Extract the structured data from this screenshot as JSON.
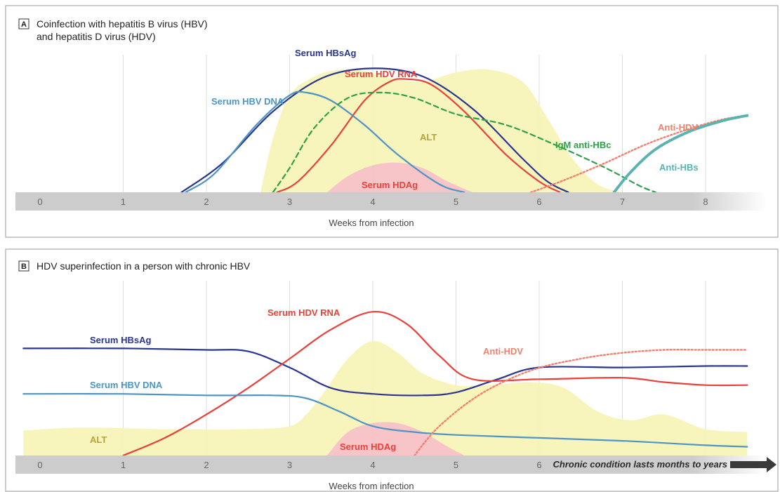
{
  "chart_data": [
    {
      "type": "line",
      "panel_letter": "A",
      "title_lines": [
        "Coinfection with hepatitis B virus (HBV)",
        "and hepatitis D virus (HDV)"
      ],
      "xlabel": "Weeks from infection",
      "x_ticks": [
        "0",
        "1",
        "2",
        "3",
        "4",
        "5",
        "6",
        "7",
        "8"
      ],
      "xlim": [
        0,
        8.5
      ],
      "ylim": [
        0,
        100
      ],
      "grid": true,
      "colors": {
        "hbsag": "#2a3590",
        "hdvrna": "#e8413c",
        "hbvdna": "#4e95c5",
        "igm": "#2fa048",
        "antihdv": "#f08070",
        "antihbs": "#5ab3b0",
        "alt": "#f7f3b8",
        "alt_text": "#b8a33a",
        "hdag": "#f6bfc8",
        "hdag_text": "#e8413c"
      },
      "series": [
        {
          "name": "Serum HBsAg",
          "x": [
            1.7,
            2.2,
            2.8,
            3.4,
            4.0,
            4.6,
            5.2,
            5.8,
            6.1,
            6.35
          ],
          "y": [
            0,
            22,
            60,
            85,
            92,
            86,
            62,
            25,
            8,
            0
          ]
        },
        {
          "name": "Serum HDV RNA",
          "x": [
            2.85,
            3.1,
            3.5,
            3.9,
            4.2,
            4.4,
            4.7,
            5.1,
            5.6,
            6.0,
            6.25
          ],
          "y": [
            0,
            8,
            35,
            68,
            82,
            84,
            80,
            60,
            28,
            8,
            0
          ]
        },
        {
          "name": "Serum HBV DNA",
          "x": [
            1.75,
            2.1,
            2.6,
            3.0,
            3.2,
            3.5,
            3.9,
            4.3,
            4.8,
            5.1
          ],
          "y": [
            0,
            14,
            50,
            72,
            74,
            68,
            50,
            28,
            6,
            0
          ]
        },
        {
          "name": "IgM anti-HBc",
          "x": [
            2.8,
            3.0,
            3.3,
            3.7,
            4.1,
            4.5,
            5.0,
            5.6,
            6.2,
            6.8,
            7.2,
            7.4
          ],
          "y": [
            0,
            18,
            48,
            70,
            74,
            70,
            58,
            50,
            35,
            18,
            5,
            0
          ]
        },
        {
          "name": "Anti-HDV",
          "x": [
            5.9,
            6.3,
            6.8,
            7.3,
            7.8,
            8.2,
            8.5
          ],
          "y": [
            0,
            9,
            22,
            36,
            47,
            54,
            57
          ]
        },
        {
          "name": "Anti-HBs",
          "x": [
            6.9,
            7.1,
            7.4,
            7.8,
            8.2,
            8.5
          ],
          "y": [
            0,
            15,
            32,
            45,
            53,
            57
          ]
        }
      ],
      "areas": [
        {
          "name": "ALT",
          "x": [
            2.65,
            2.8,
            3.0,
            3.3,
            3.6,
            3.9,
            4.2,
            4.6,
            5.0,
            5.4,
            5.8,
            6.1,
            6.4,
            6.7,
            7.0
          ],
          "y": [
            0,
            40,
            72,
            86,
            91,
            90,
            85,
            82,
            89,
            91,
            82,
            55,
            25,
            6,
            0
          ]
        },
        {
          "name": "Serum HDAg",
          "x": [
            3.45,
            3.7,
            4.0,
            4.3,
            4.6,
            4.9,
            5.2
          ],
          "y": [
            0,
            12,
            20,
            22,
            18,
            8,
            0
          ]
        }
      ]
    },
    {
      "type": "line",
      "panel_letter": "B",
      "title": "HDV superinfection in a person with chronic HBV",
      "xlabel": "Weeks from infection",
      "x_ticks": [
        "0",
        "1",
        "2",
        "3",
        "4",
        "5",
        "6"
      ],
      "xlim": [
        0,
        8.5
      ],
      "ylim": [
        0,
        100
      ],
      "grid": true,
      "arrow_label": "Chronic condition lasts months to years",
      "colors": {
        "hbsag": "#2a3590",
        "hdvrna": "#e8413c",
        "hbvdna": "#4e95c5",
        "antihdv": "#f08070",
        "alt": "#f7f3b8",
        "alt_text": "#b8a33a",
        "hdag": "#f6bfc8",
        "hdag_text": "#e8413c"
      },
      "series": [
        {
          "name": "Serum HBsAg",
          "x": [
            -0.2,
            1.0,
            2.0,
            2.5,
            3.0,
            3.5,
            4.0,
            4.6,
            5.0,
            5.5,
            6.0,
            7.0,
            8.0,
            8.5
          ],
          "y": [
            73,
            73,
            72,
            71,
            60,
            46,
            42,
            41,
            43,
            52,
            60,
            60,
            61,
            61
          ]
        },
        {
          "name": "Serum HDV RNA",
          "x": [
            1.0,
            1.5,
            2.0,
            2.5,
            3.0,
            3.5,
            4.0,
            4.4,
            4.8,
            5.2,
            6.0,
            7.0,
            7.5,
            8.0,
            8.5
          ],
          "y": [
            0,
            12,
            28,
            46,
            66,
            86,
            98,
            90,
            68,
            52,
            52,
            53,
            50,
            48,
            48
          ]
        },
        {
          "name": "Serum HBV DNA",
          "x": [
            -0.2,
            1.0,
            2.0,
            2.8,
            3.2,
            3.6,
            4.0,
            4.5,
            5.0,
            6.0,
            7.0,
            8.0,
            8.5
          ],
          "y": [
            42,
            42,
            41,
            41,
            39,
            30,
            20,
            16,
            14,
            12,
            10,
            7,
            6
          ]
        },
        {
          "name": "Anti-HDV",
          "x": [
            4.5,
            4.8,
            5.3,
            5.9,
            6.5,
            7.0,
            7.5,
            8.0,
            8.5
          ],
          "y": [
            0,
            20,
            42,
            58,
            66,
            70,
            72,
            72,
            72
          ]
        }
      ],
      "areas": [
        {
          "name": "ALT",
          "x": [
            -0.2,
            0.5,
            1.5,
            2.5,
            3.0,
            3.2,
            3.4,
            3.7,
            4.0,
            4.3,
            4.6,
            5.0,
            5.4,
            5.9,
            6.3,
            6.7,
            7.1,
            7.5,
            8.0,
            8.5
          ],
          "y": [
            17,
            19,
            18,
            18,
            20,
            28,
            42,
            66,
            78,
            70,
            56,
            48,
            48,
            50,
            46,
            30,
            24,
            28,
            18,
            16
          ]
        },
        {
          "name": "Serum HDAg",
          "x": [
            3.45,
            3.7,
            4.0,
            4.3,
            4.6,
            4.9,
            5.1
          ],
          "y": [
            0,
            16,
            22,
            22,
            16,
            6,
            0
          ]
        }
      ]
    }
  ]
}
